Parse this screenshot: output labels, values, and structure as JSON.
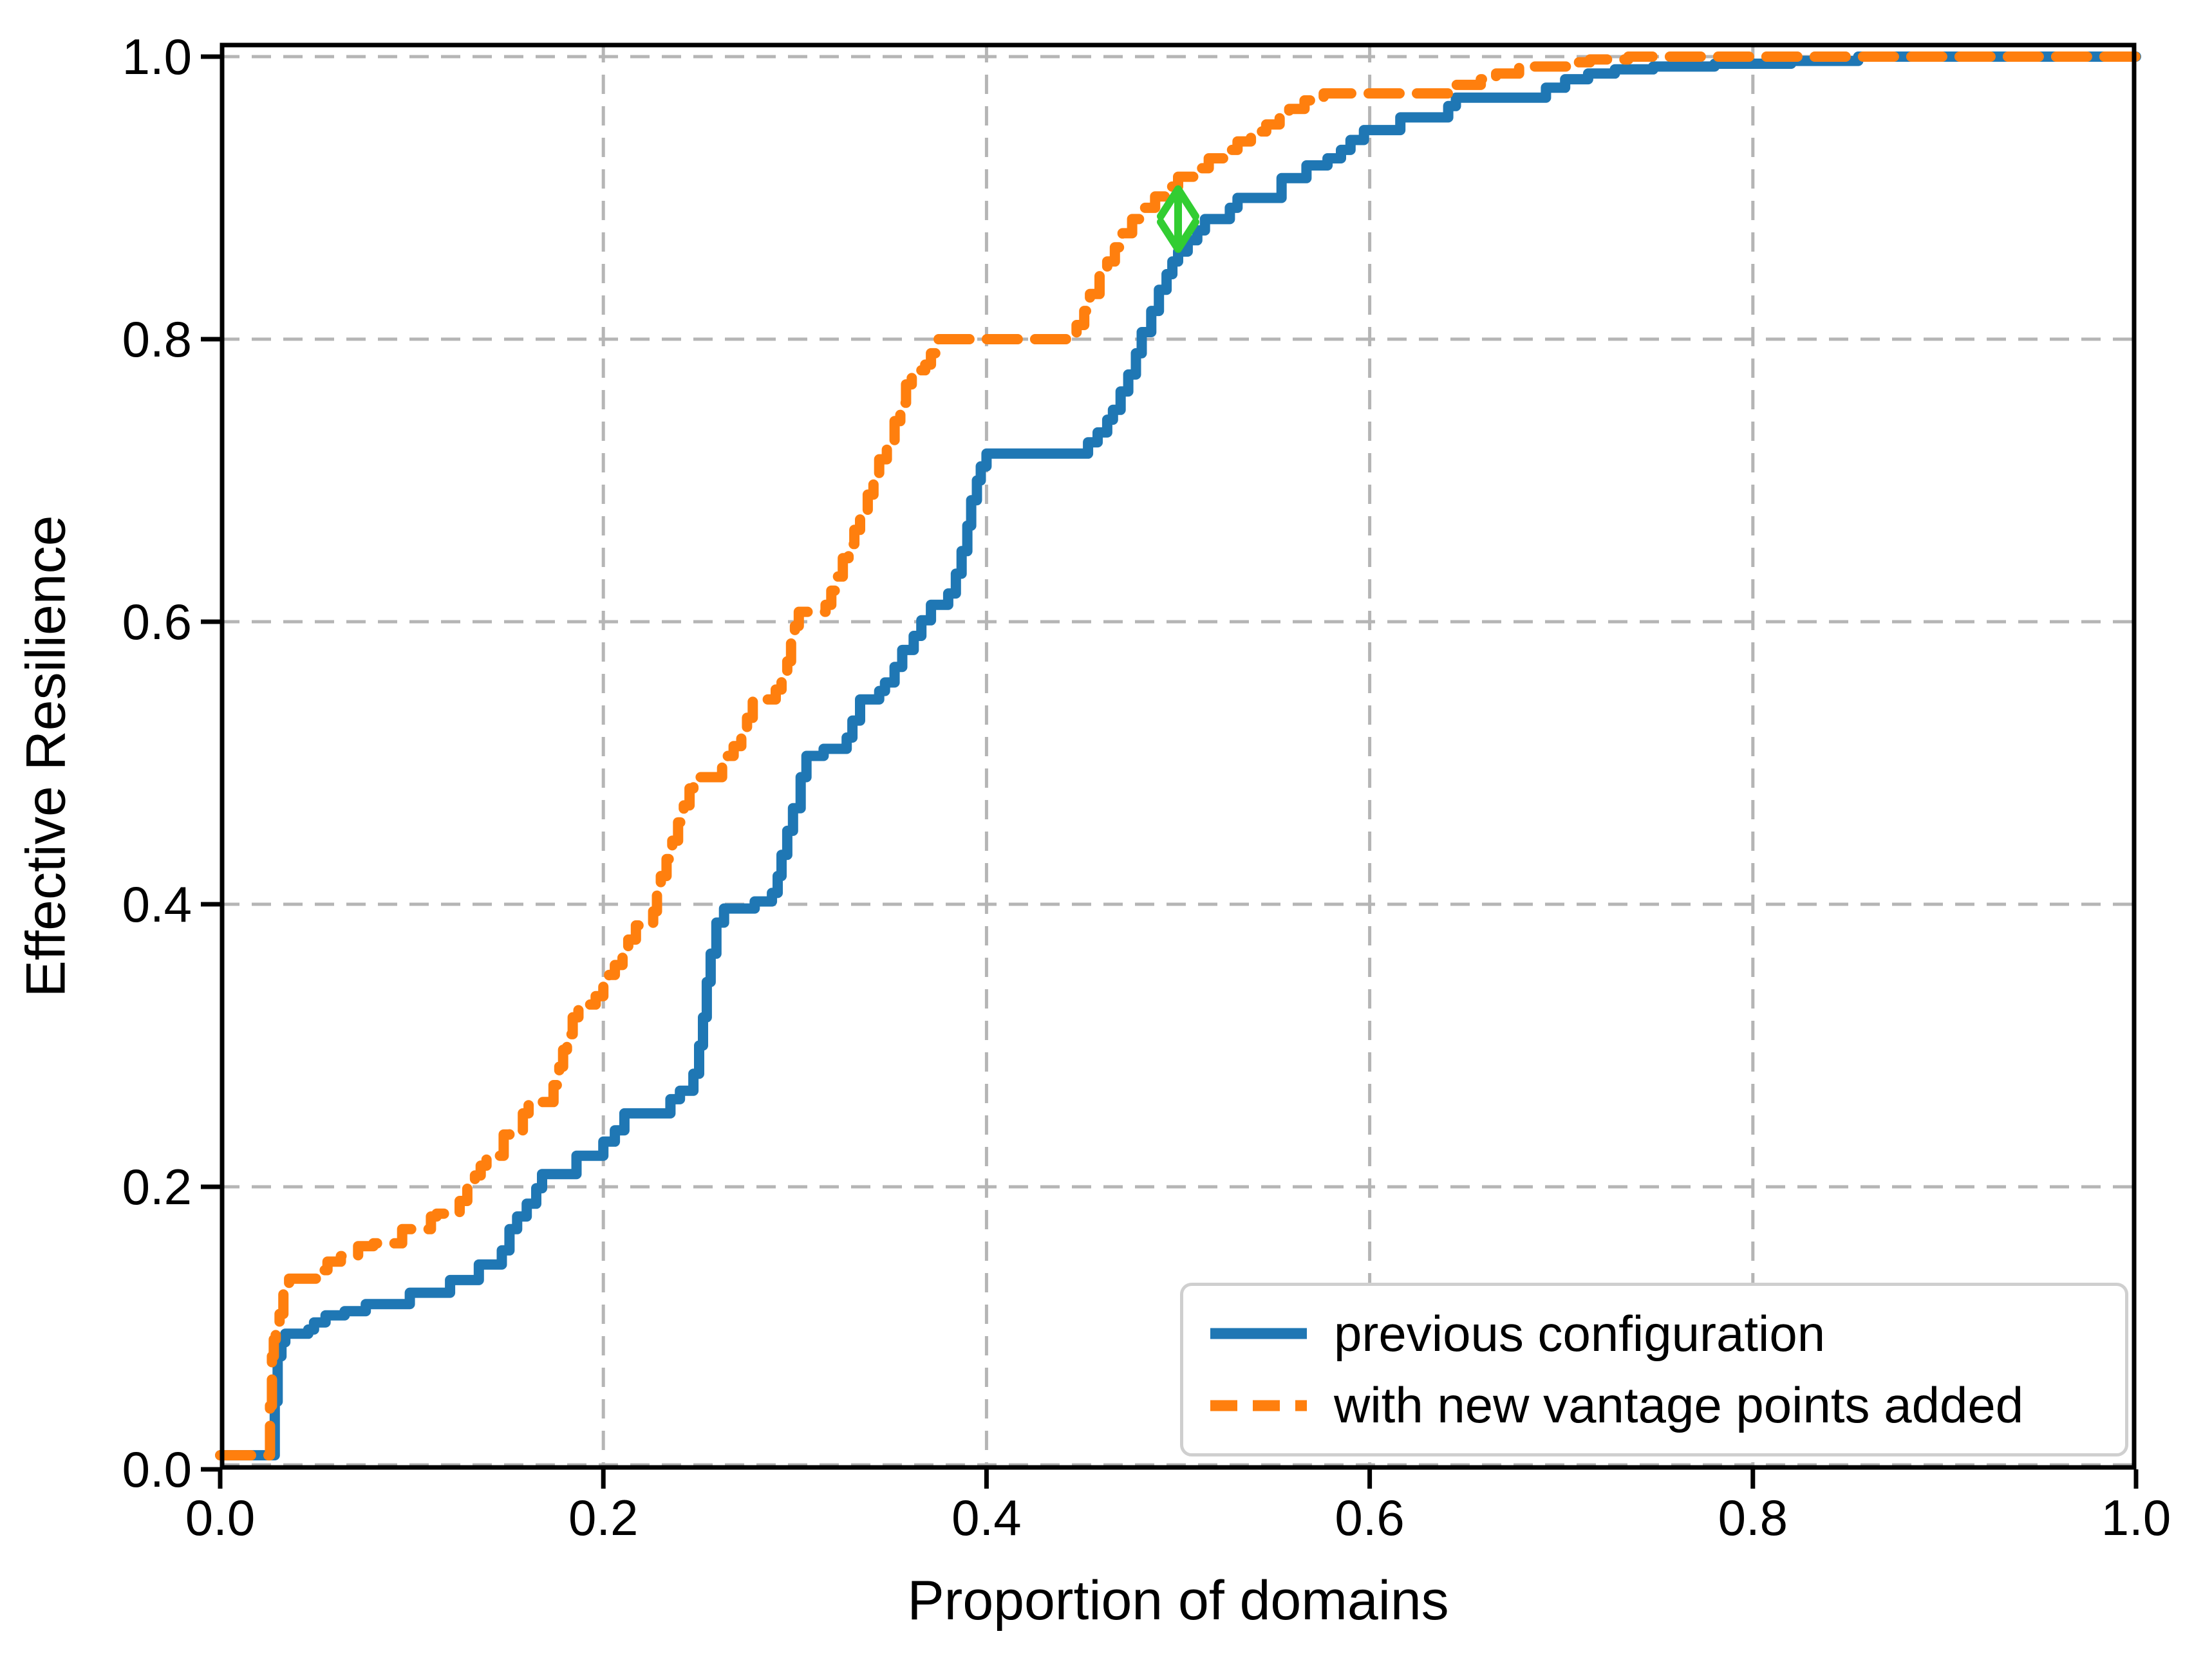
{
  "figure": {
    "background": "#ffffff",
    "axes_box_color": "#000000",
    "grid_color": "#b5b5b5"
  },
  "chart_data": {
    "type": "line",
    "title": "",
    "xlabel": "Proportion of domains",
    "ylabel": "Effective Resilience",
    "xlim": [
      0.0,
      1.0
    ],
    "ylim": [
      0.0,
      1.01
    ],
    "grid": true,
    "grid_style": "dashed",
    "legend_position": "lower right",
    "x_ticks": [
      {
        "value": 0.0,
        "label": "0.0"
      },
      {
        "value": 0.2,
        "label": "0.2"
      },
      {
        "value": 0.4,
        "label": "0.4"
      },
      {
        "value": 0.6,
        "label": "0.6"
      },
      {
        "value": 0.8,
        "label": "0.8"
      },
      {
        "value": 1.0,
        "label": "1.0"
      }
    ],
    "y_ticks": [
      {
        "value": 0.0,
        "label": "0.0"
      },
      {
        "value": 0.2,
        "label": "0.2"
      },
      {
        "value": 0.4,
        "label": "0.4"
      },
      {
        "value": 0.6,
        "label": "0.6"
      },
      {
        "value": 0.8,
        "label": "0.8"
      },
      {
        "value": 1.0,
        "label": "1.0"
      }
    ],
    "series": [
      {
        "name": "previous configuration",
        "color": "#1f77b4",
        "style": "solid",
        "step": "post",
        "points": [
          [
            0.0,
            0.01
          ],
          [
            0.028,
            0.01
          ],
          [
            0.0285,
            0.048
          ],
          [
            0.03,
            0.08
          ],
          [
            0.032,
            0.09
          ],
          [
            0.034,
            0.096
          ],
          [
            0.046,
            0.099
          ],
          [
            0.049,
            0.104
          ],
          [
            0.055,
            0.109
          ],
          [
            0.065,
            0.112
          ],
          [
            0.076,
            0.117
          ],
          [
            0.099,
            0.125
          ],
          [
            0.12,
            0.134
          ],
          [
            0.135,
            0.145
          ],
          [
            0.147,
            0.155
          ],
          [
            0.151,
            0.17
          ],
          [
            0.155,
            0.179
          ],
          [
            0.16,
            0.188
          ],
          [
            0.165,
            0.199
          ],
          [
            0.168,
            0.209
          ],
          [
            0.186,
            0.222
          ],
          [
            0.2,
            0.232
          ],
          [
            0.206,
            0.24
          ],
          [
            0.211,
            0.252
          ],
          [
            0.235,
            0.262
          ],
          [
            0.24,
            0.268
          ],
          [
            0.247,
            0.28
          ],
          [
            0.25,
            0.3
          ],
          [
            0.252,
            0.32
          ],
          [
            0.254,
            0.345
          ],
          [
            0.256,
            0.365
          ],
          [
            0.259,
            0.387
          ],
          [
            0.263,
            0.397
          ],
          [
            0.279,
            0.402
          ],
          [
            0.288,
            0.408
          ],
          [
            0.291,
            0.42
          ],
          [
            0.293,
            0.435
          ],
          [
            0.296,
            0.452
          ],
          [
            0.299,
            0.468
          ],
          [
            0.303,
            0.49
          ],
          [
            0.306,
            0.505
          ],
          [
            0.315,
            0.51
          ],
          [
            0.327,
            0.518
          ],
          [
            0.33,
            0.53
          ],
          [
            0.334,
            0.545
          ],
          [
            0.344,
            0.551
          ],
          [
            0.347,
            0.557
          ],
          [
            0.352,
            0.568
          ],
          [
            0.356,
            0.58
          ],
          [
            0.362,
            0.59
          ],
          [
            0.366,
            0.601
          ],
          [
            0.371,
            0.612
          ],
          [
            0.38,
            0.62
          ],
          [
            0.384,
            0.634
          ],
          [
            0.387,
            0.65
          ],
          [
            0.39,
            0.668
          ],
          [
            0.392,
            0.686
          ],
          [
            0.395,
            0.7
          ],
          [
            0.397,
            0.71
          ],
          [
            0.4,
            0.719
          ],
          [
            0.452,
            0.719
          ],
          [
            0.453,
            0.727
          ],
          [
            0.458,
            0.734
          ],
          [
            0.463,
            0.743
          ],
          [
            0.466,
            0.75
          ],
          [
            0.47,
            0.763
          ],
          [
            0.474,
            0.775
          ],
          [
            0.478,
            0.79
          ],
          [
            0.481,
            0.805
          ],
          [
            0.486,
            0.82
          ],
          [
            0.49,
            0.835
          ],
          [
            0.494,
            0.846
          ],
          [
            0.497,
            0.855
          ],
          [
            0.5,
            0.862
          ],
          [
            0.505,
            0.87
          ],
          [
            0.51,
            0.877
          ],
          [
            0.514,
            0.885
          ],
          [
            0.527,
            0.893
          ],
          [
            0.531,
            0.9
          ],
          [
            0.554,
            0.914
          ],
          [
            0.567,
            0.923
          ],
          [
            0.578,
            0.928
          ],
          [
            0.585,
            0.934
          ],
          [
            0.59,
            0.941
          ],
          [
            0.597,
            0.948
          ],
          [
            0.616,
            0.957
          ],
          [
            0.641,
            0.965
          ],
          [
            0.645,
            0.971
          ],
          [
            0.692,
            0.978
          ],
          [
            0.702,
            0.984
          ],
          [
            0.714,
            0.988
          ],
          [
            0.728,
            0.991
          ],
          [
            0.748,
            0.993
          ],
          [
            0.78,
            0.995
          ],
          [
            0.82,
            0.997
          ],
          [
            0.855,
            1.0
          ],
          [
            1.0,
            1.0
          ]
        ]
      },
      {
        "name": "with new vantage points added",
        "color": "#ff7f0e",
        "style": "dashed",
        "step": "post",
        "points": [
          [
            0.0,
            0.01
          ],
          [
            0.025,
            0.01
          ],
          [
            0.026,
            0.045
          ],
          [
            0.027,
            0.08
          ],
          [
            0.028,
            0.092
          ],
          [
            0.029,
            0.099
          ],
          [
            0.031,
            0.11
          ],
          [
            0.033,
            0.124
          ],
          [
            0.036,
            0.135
          ],
          [
            0.051,
            0.141
          ],
          [
            0.056,
            0.147
          ],
          [
            0.063,
            0.151
          ],
          [
            0.072,
            0.158
          ],
          [
            0.08,
            0.16
          ],
          [
            0.095,
            0.17
          ],
          [
            0.11,
            0.179
          ],
          [
            0.113,
            0.181
          ],
          [
            0.125,
            0.19
          ],
          [
            0.129,
            0.199
          ],
          [
            0.133,
            0.208
          ],
          [
            0.136,
            0.215
          ],
          [
            0.139,
            0.222
          ],
          [
            0.148,
            0.237
          ],
          [
            0.151,
            0.24
          ],
          [
            0.158,
            0.252
          ],
          [
            0.161,
            0.26
          ],
          [
            0.174,
            0.272
          ],
          [
            0.177,
            0.285
          ],
          [
            0.179,
            0.297
          ],
          [
            0.181,
            0.308
          ],
          [
            0.184,
            0.32
          ],
          [
            0.187,
            0.329
          ],
          [
            0.196,
            0.335
          ],
          [
            0.2,
            0.342
          ],
          [
            0.203,
            0.35
          ],
          [
            0.206,
            0.357
          ],
          [
            0.21,
            0.365
          ],
          [
            0.213,
            0.375
          ],
          [
            0.217,
            0.385
          ],
          [
            0.226,
            0.395
          ],
          [
            0.228,
            0.408
          ],
          [
            0.23,
            0.42
          ],
          [
            0.233,
            0.432
          ],
          [
            0.236,
            0.445
          ],
          [
            0.239,
            0.458
          ],
          [
            0.242,
            0.47
          ],
          [
            0.245,
            0.482
          ],
          [
            0.247,
            0.49
          ],
          [
            0.262,
            0.497
          ],
          [
            0.265,
            0.505
          ],
          [
            0.268,
            0.512
          ],
          [
            0.272,
            0.522
          ],
          [
            0.275,
            0.532
          ],
          [
            0.278,
            0.545
          ],
          [
            0.29,
            0.552
          ],
          [
            0.293,
            0.56
          ],
          [
            0.296,
            0.572
          ],
          [
            0.298,
            0.585
          ],
          [
            0.3,
            0.597
          ],
          [
            0.302,
            0.607
          ],
          [
            0.316,
            0.612
          ],
          [
            0.319,
            0.622
          ],
          [
            0.322,
            0.632
          ],
          [
            0.325,
            0.645
          ],
          [
            0.328,
            0.655
          ],
          [
            0.331,
            0.665
          ],
          [
            0.334,
            0.678
          ],
          [
            0.338,
            0.69
          ],
          [
            0.341,
            0.703
          ],
          [
            0.344,
            0.715
          ],
          [
            0.348,
            0.728
          ],
          [
            0.352,
            0.742
          ],
          [
            0.355,
            0.755
          ],
          [
            0.358,
            0.768
          ],
          [
            0.361,
            0.778
          ],
          [
            0.368,
            0.782
          ],
          [
            0.371,
            0.79
          ],
          [
            0.375,
            0.8
          ],
          [
            0.444,
            0.8
          ],
          [
            0.447,
            0.81
          ],
          [
            0.451,
            0.82
          ],
          [
            0.454,
            0.832
          ],
          [
            0.459,
            0.845
          ],
          [
            0.463,
            0.855
          ],
          [
            0.467,
            0.865
          ],
          [
            0.471,
            0.875
          ],
          [
            0.476,
            0.885
          ],
          [
            0.481,
            0.893
          ],
          [
            0.488,
            0.901
          ],
          [
            0.495,
            0.908
          ],
          [
            0.5,
            0.915
          ],
          [
            0.508,
            0.921
          ],
          [
            0.516,
            0.928
          ],
          [
            0.524,
            0.934
          ],
          [
            0.531,
            0.94
          ],
          [
            0.538,
            0.947
          ],
          [
            0.546,
            0.952
          ],
          [
            0.553,
            0.958
          ],
          [
            0.558,
            0.963
          ],
          [
            0.566,
            0.969
          ],
          [
            0.576,
            0.974
          ],
          [
            0.645,
            0.98
          ],
          [
            0.658,
            0.984
          ],
          [
            0.666,
            0.988
          ],
          [
            0.678,
            0.993
          ],
          [
            0.705,
            0.996
          ],
          [
            0.715,
            0.998
          ],
          [
            0.735,
            1.0
          ],
          [
            1.0,
            1.0
          ]
        ]
      }
    ],
    "annotation": {
      "type": "double-headed-vertical-arrow",
      "x": 0.5,
      "y_from": 0.862,
      "y_to": 0.908,
      "color": "#32cd32"
    }
  },
  "legend": {
    "items": [
      {
        "label": "previous configuration",
        "color": "#1f77b4",
        "style": "solid"
      },
      {
        "label": "with new vantage points added",
        "color": "#ff7f0e",
        "style": "dashed"
      }
    ]
  }
}
